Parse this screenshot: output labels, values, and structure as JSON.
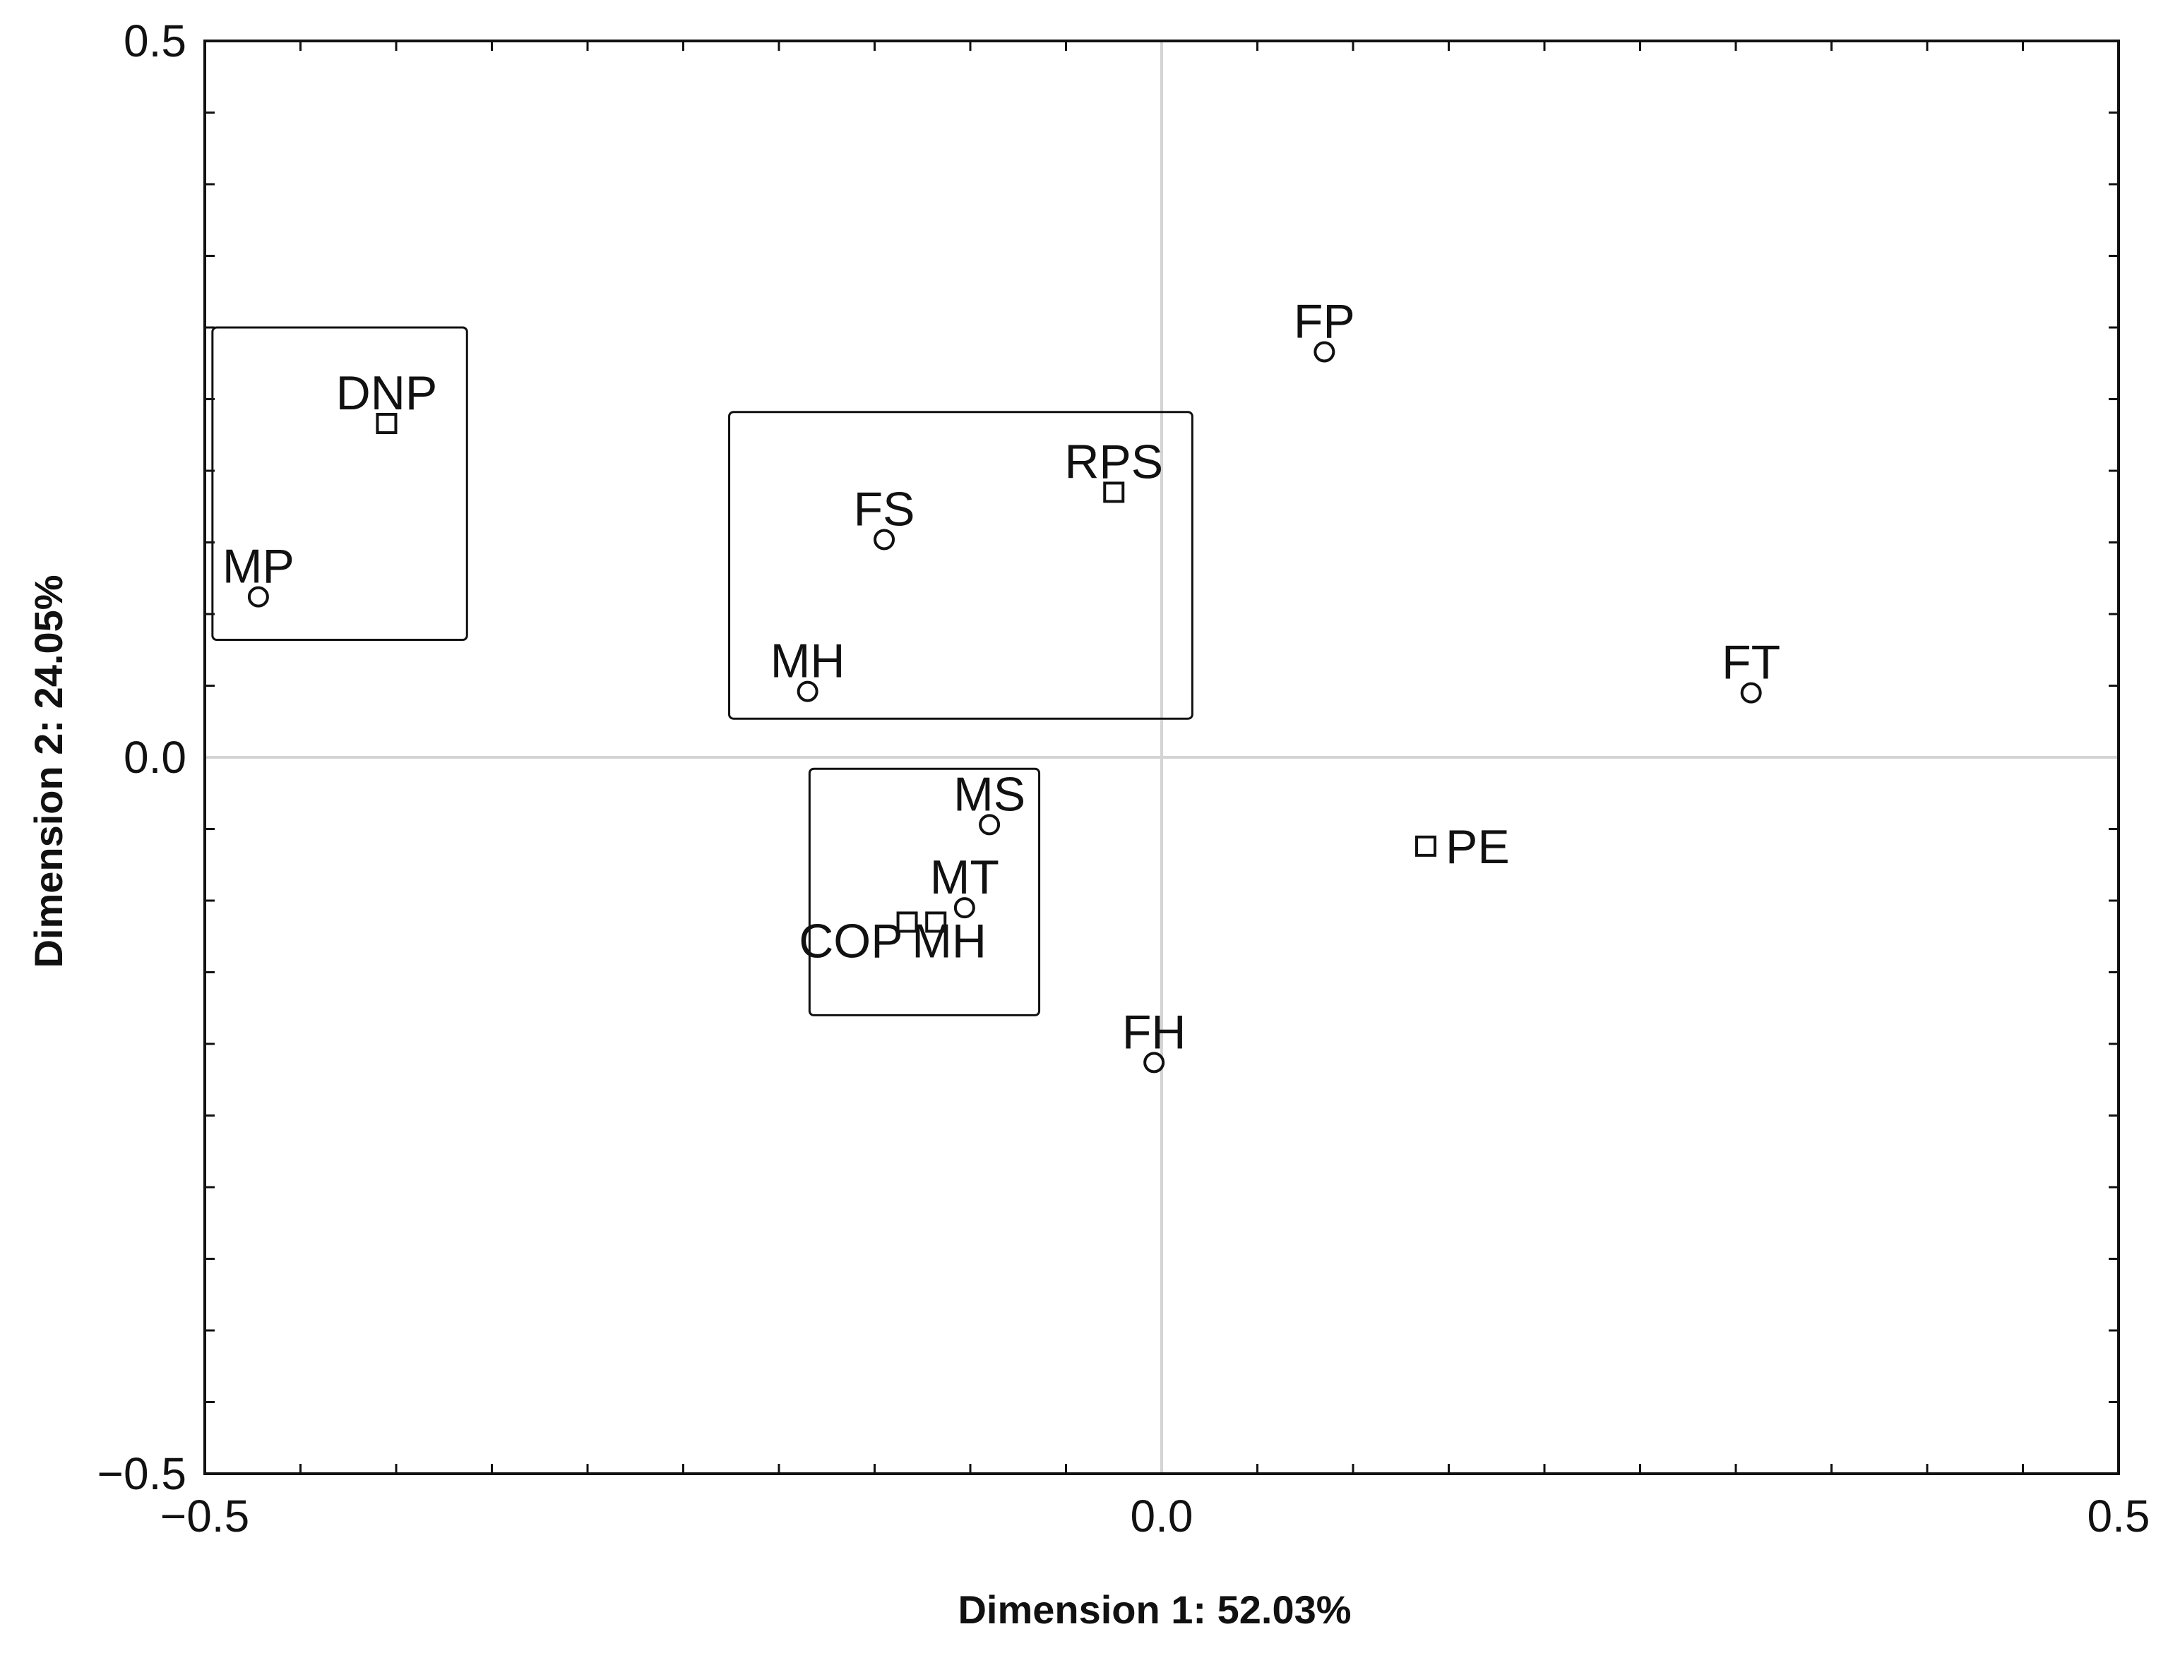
{
  "chart_data": {
    "type": "scatter",
    "title": "",
    "xlabel": "Dimension 1: 52.03%",
    "ylabel": "Dimension 2: 24.05%",
    "xlim": [
      -0.5,
      0.5
    ],
    "ylim": [
      -0.5,
      0.5
    ],
    "x_ticks": [
      -0.5,
      0.0,
      0.5
    ],
    "y_ticks": [
      -0.5,
      0.0,
      0.5
    ],
    "x_tick_labels": [
      "−0.5",
      "0.0",
      "0.5"
    ],
    "y_tick_labels": [
      "−0.5",
      "0.0",
      "0.5"
    ],
    "x_minor_step": 0.05,
    "y_minor_step": 0.05,
    "grid": "zero lines only",
    "legend": "none",
    "points": [
      {
        "label": "FP",
        "x": 0.085,
        "y": 0.283,
        "marker": "circle"
      },
      {
        "label": "DNP",
        "x": -0.405,
        "y": 0.233,
        "marker": "square"
      },
      {
        "label": "RPS",
        "x": -0.025,
        "y": 0.185,
        "marker": "square"
      },
      {
        "label": "FS",
        "x": -0.145,
        "y": 0.152,
        "marker": "circle"
      },
      {
        "label": "MP",
        "x": -0.472,
        "y": 0.112,
        "marker": "circle"
      },
      {
        "label": "MH",
        "x": -0.185,
        "y": 0.046,
        "marker": "circle"
      },
      {
        "label": "FT",
        "x": 0.308,
        "y": 0.045,
        "marker": "circle"
      },
      {
        "label": "MS",
        "x": -0.09,
        "y": -0.047,
        "marker": "circle"
      },
      {
        "label": "PE",
        "x": 0.138,
        "y": -0.062,
        "marker": "square"
      },
      {
        "label": "MT",
        "x": -0.103,
        "y": -0.105,
        "marker": "circle"
      },
      {
        "label": "COP",
        "x": -0.133,
        "y": -0.115,
        "marker": "square"
      },
      {
        "label": "MH",
        "x": -0.118,
        "y": -0.115,
        "marker": "square"
      },
      {
        "label": "FH",
        "x": -0.004,
        "y": -0.213,
        "marker": "circle"
      }
    ],
    "groups": [
      {
        "members": [
          "DNP",
          "MP"
        ],
        "x": [
          -0.496,
          -0.363
        ],
        "y": [
          0.082,
          0.3
        ]
      },
      {
        "members": [
          "RPS",
          "FS",
          "MH"
        ],
        "x": [
          -0.226,
          0.016
        ],
        "y": [
          0.027,
          0.241
        ]
      },
      {
        "members": [
          "MS",
          "MT",
          "COP",
          "MH"
        ],
        "x": [
          -0.184,
          -0.064
        ],
        "y": [
          -0.18,
          -0.008
        ]
      }
    ],
    "colors": {
      "marks": "#111111",
      "zero_lines": "#d4d4d4",
      "background": "#ffffff"
    }
  }
}
